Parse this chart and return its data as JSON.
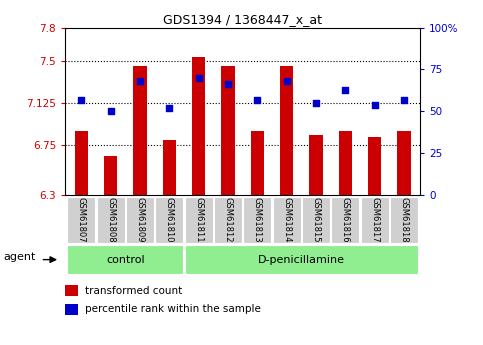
{
  "title": "GDS1394 / 1368447_x_at",
  "categories": [
    "GSM61807",
    "GSM61808",
    "GSM61809",
    "GSM61810",
    "GSM61811",
    "GSM61812",
    "GSM61813",
    "GSM61814",
    "GSM61815",
    "GSM61816",
    "GSM61817",
    "GSM61818"
  ],
  "bar_values": [
    6.87,
    6.65,
    7.46,
    6.79,
    7.54,
    7.46,
    6.87,
    7.46,
    6.84,
    6.87,
    6.82,
    6.87
  ],
  "dot_values": [
    57,
    50,
    68,
    52,
    70,
    66,
    57,
    68,
    55,
    63,
    54,
    57
  ],
  "ylim_left": [
    6.3,
    7.8
  ],
  "ylim_right": [
    0,
    100
  ],
  "yticks_left": [
    6.3,
    6.75,
    7.125,
    7.5,
    7.8
  ],
  "ytick_labels_left": [
    "6.3",
    "6.75",
    "7.125",
    "7.5",
    "7.8"
  ],
  "yticks_right": [
    0,
    25,
    50,
    75,
    100
  ],
  "ytick_labels_right": [
    "0",
    "25",
    "50",
    "75",
    "100%"
  ],
  "hlines": [
    6.75,
    7.125,
    7.5
  ],
  "bar_color": "#cc0000",
  "dot_color": "#0000cc",
  "group_labels": [
    "control",
    "D-penicillamine"
  ],
  "group_color": "#90ee90",
  "agent_label": "agent",
  "legend_items": [
    "transformed count",
    "percentile rank within the sample"
  ],
  "control_count": 4,
  "total_count": 12,
  "left_tick_color": "#cc0000",
  "right_tick_color": "#0000cc",
  "bar_width": 0.45
}
